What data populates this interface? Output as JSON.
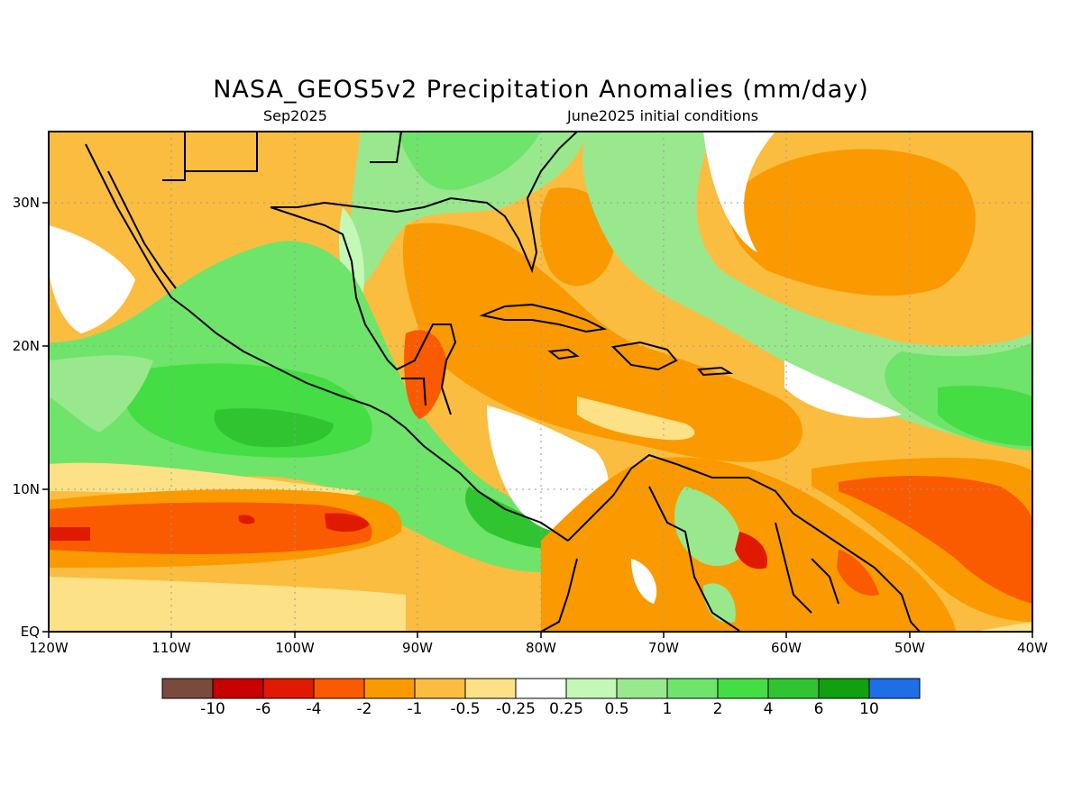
{
  "title": "NASA_GEOS5v2 Precipitation Anomalies (mm/day)",
  "subtitle_left": "Sep2025",
  "subtitle_right": "June2025 initial conditions",
  "lat_labels": [
    "30N",
    "20N",
    "10N",
    "EQ"
  ],
  "lon_labels": [
    "120W",
    "110W",
    "100W",
    "90W",
    "80W",
    "70W",
    "60W",
    "50W",
    "40W"
  ],
  "colorbar": {
    "colors": [
      "#7a4b3c",
      "#c80000",
      "#e01a00",
      "#fa5a00",
      "#fa9a00",
      "#fbbd40",
      "#fde186",
      "#ffffff",
      "#c4f8b6",
      "#9ae88e",
      "#6ee46a",
      "#44dd44",
      "#30c530",
      "#10a010",
      "#1e6ee8"
    ],
    "labels": [
      "-10",
      "-6",
      "-4",
      "-2",
      "-1",
      "-0.5",
      "-0.25",
      "0.25",
      "0.5",
      "1",
      "2",
      "4",
      "6",
      "10"
    ]
  },
  "map": {
    "lon_range": [
      -120,
      -40
    ],
    "lat_range": [
      0,
      35
    ],
    "colors": {
      "ocean_dry": "#fbbd40",
      "wet": "#6ee46a",
      "very_dry": "#fa5a00",
      "coast": "#000000",
      "grid": "#999999"
    }
  }
}
